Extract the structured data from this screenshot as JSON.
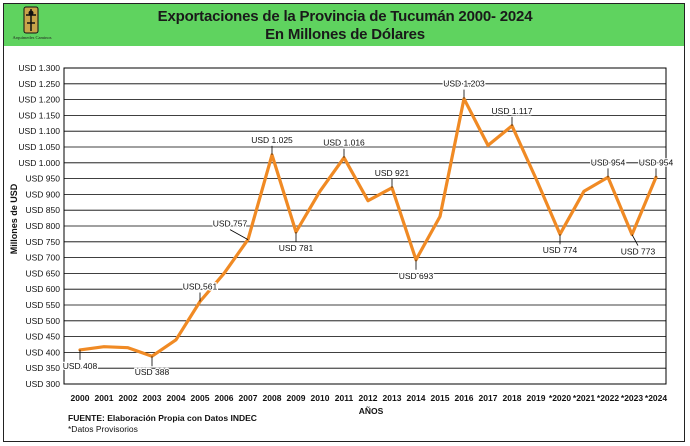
{
  "header": {
    "title_line1": "Exportaciones  de la Provincia de Tucumán 2000- 2024",
    "title_line2": "En Millones de Dólares",
    "logo_text": "Arquímedes Caminos"
  },
  "colors": {
    "header_bg": "#5fd35f",
    "line": "#f08a24",
    "grid": "#000000"
  },
  "chart_data": {
    "type": "line",
    "ylabel": "Millones de USD",
    "xlabel": "AÑOS",
    "ylim": [
      300,
      1300
    ],
    "ytick_step": 50,
    "ytick_labels": [
      "USD 300",
      "USD 350",
      "USD 400",
      "USD 450",
      "USD 500",
      "USD 550",
      "USD 600",
      "USD 650",
      "USD 700",
      "USD 750",
      "USD 800",
      "USD 850",
      "USD 900",
      "USD 950",
      "USD 1.000",
      "USD 1.050",
      "USD 1.100",
      "USD 1.150",
      "USD 1.200",
      "USD 1.250",
      "USD 1.300"
    ],
    "categories": [
      "2000",
      "2001",
      "2002",
      "2003",
      "2004",
      "2005",
      "2006",
      "2007",
      "2008",
      "2009",
      "2010",
      "2011",
      "2012",
      "2013",
      "2014",
      "2015",
      "2016",
      "2017",
      "2018",
      "2019",
      "*2020",
      "*2021",
      "*2022",
      "*2023",
      "*2024"
    ],
    "values": [
      408,
      418,
      415,
      388,
      440,
      561,
      650,
      757,
      1025,
      781,
      910,
      1016,
      880,
      921,
      693,
      830,
      1203,
      1055,
      1117,
      950,
      774,
      910,
      954,
      773,
      954
    ],
    "grid": true,
    "data_labels": [
      {
        "index": 0,
        "text": "USD 408",
        "pos": "below"
      },
      {
        "index": 3,
        "text": "USD 388",
        "pos": "below"
      },
      {
        "index": 5,
        "text": "USD 561",
        "pos": "above"
      },
      {
        "index": 7,
        "text": "USD 757",
        "pos": "above-left"
      },
      {
        "index": 8,
        "text": "USD 1.025",
        "pos": "above"
      },
      {
        "index": 9,
        "text": "USD 781",
        "pos": "below"
      },
      {
        "index": 11,
        "text": "USD 1.016",
        "pos": "above"
      },
      {
        "index": 13,
        "text": "USD 921",
        "pos": "above"
      },
      {
        "index": 14,
        "text": "USD 693",
        "pos": "below"
      },
      {
        "index": 16,
        "text": "USD 1.203",
        "pos": "above"
      },
      {
        "index": 18,
        "text": "USD 1.117",
        "pos": "above"
      },
      {
        "index": 20,
        "text": "USD 774",
        "pos": "below"
      },
      {
        "index": 22,
        "text": "USD 954",
        "pos": "above"
      },
      {
        "index": 23,
        "text": "USD 773",
        "pos": "below-right"
      },
      {
        "index": 24,
        "text": "USD 954",
        "pos": "above"
      }
    ]
  },
  "footer": {
    "source": "FUENTE: Elaboración Propia con Datos INDEC",
    "note": "*Datos Provisorios"
  }
}
